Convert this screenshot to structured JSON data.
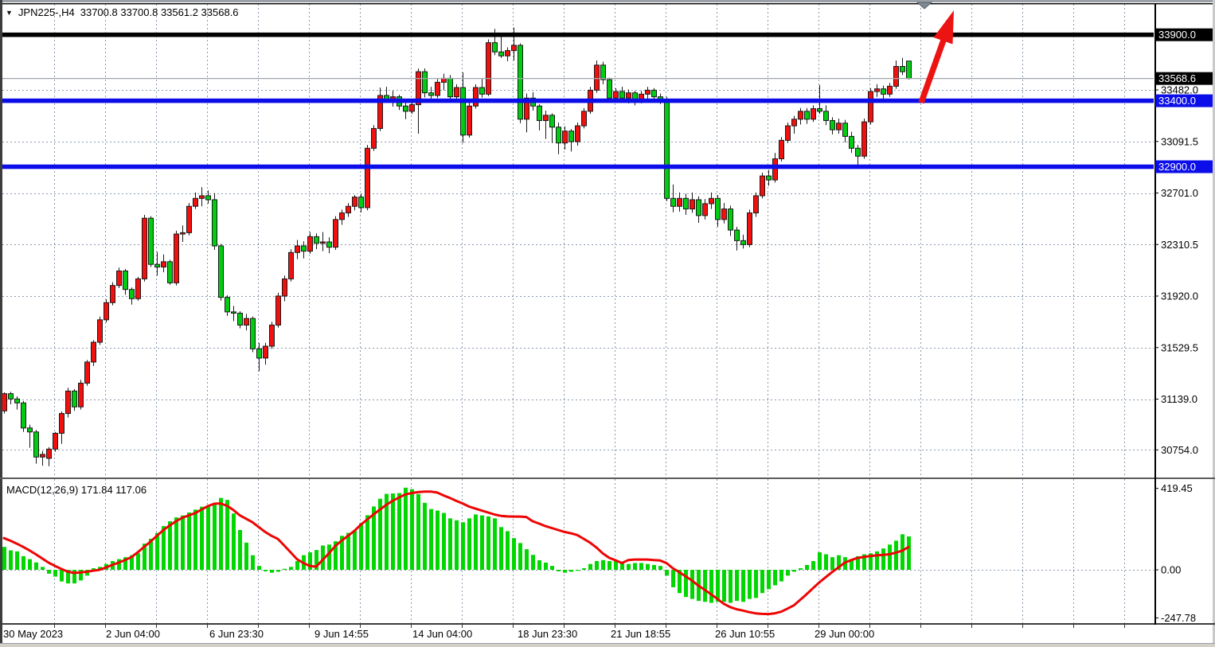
{
  "header": {
    "dropdown_icon": "▼",
    "symbol": "JPN225-,H4",
    "ohlc": "33700.8 33700.8 33561.2 33568.6"
  },
  "indicator_label": "MACD(12,26,9) 171.84 117.06",
  "colors": {
    "bull": "#f2100e",
    "bear": "#00cd12",
    "wick": "#1a1a1a",
    "grid": "#8a99ad",
    "blue_line": "#0b0ee8",
    "black_line": "#000000",
    "bid_line": "#a0a6ac",
    "signal": "#ee0404",
    "histogram": "#00d600",
    "arrow": "#ec1313",
    "marker": "#7e8891",
    "label_box_black": "#000000",
    "label_box_blue": "#0b0ee8"
  },
  "chart_data": {
    "type": "candlestick",
    "symbol": "JPN225-",
    "timeframe": "H4",
    "last_ohlc": {
      "open": 33700.8,
      "high": 33700.8,
      "low": 33561.2,
      "close": 33568.6
    },
    "price_ticks": [
      33482.0,
      33091.5,
      32701.0,
      32310.5,
      31920.0,
      31529.5,
      31139.0,
      30754.0
    ],
    "hlines": [
      {
        "price": 33900.0,
        "label": "33900.0",
        "style": "black"
      },
      {
        "price": 33400.0,
        "label": "33400.0",
        "style": "blue"
      },
      {
        "price": 32900.0,
        "label": "32900.0",
        "style": "blue"
      }
    ],
    "bid_line": {
      "price": 33568.6,
      "label": "33568.6"
    },
    "time_labels": [
      "30 May 2023",
      "2 Jun 04:00",
      "6 Jun 23:30",
      "9 Jun 14:55",
      "14 Jun 04:00",
      "18 Jun 23:30",
      "21 Jun 18:55",
      "26 Jun 10:55",
      "29 Jun 00:00"
    ],
    "candles_ohlc": [
      [
        31050,
        31190,
        31030,
        31180
      ],
      [
        31180,
        31195,
        31100,
        31140
      ],
      [
        31140,
        31160,
        31060,
        31110
      ],
      [
        31110,
        31125,
        30890,
        30920
      ],
      [
        30920,
        30945,
        30770,
        30890
      ],
      [
        30890,
        30905,
        30650,
        30700
      ],
      [
        30700,
        30745,
        30635,
        30720
      ],
      [
        30690,
        30775,
        30630,
        30760
      ],
      [
        30760,
        30890,
        30740,
        30880
      ],
      [
        30880,
        31045,
        30800,
        31030
      ],
      [
        31030,
        31225,
        31000,
        31200
      ],
      [
        31200,
        31215,
        31050,
        31080
      ],
      [
        31080,
        31285,
        31060,
        31260
      ],
      [
        31260,
        31435,
        31240,
        31420
      ],
      [
        31420,
        31585,
        31390,
        31570
      ],
      [
        31570,
        31765,
        31550,
        31740
      ],
      [
        31740,
        31895,
        31720,
        31870
      ],
      [
        31870,
        32025,
        31850,
        32000
      ],
      [
        32000,
        32135,
        31980,
        32110
      ],
      [
        32110,
        32125,
        31930,
        31970
      ],
      [
        31970,
        31985,
        31855,
        31900
      ],
      [
        31900,
        32065,
        31885,
        32050
      ],
      [
        32050,
        32535,
        32030,
        32510
      ],
      [
        32510,
        32525,
        32140,
        32160
      ],
      [
        32160,
        32255,
        32075,
        32140
      ],
      [
        32140,
        32235,
        32100,
        32180
      ],
      [
        32180,
        32195,
        32005,
        32020
      ],
      [
        32020,
        32415,
        32000,
        32390
      ],
      [
        32390,
        32455,
        32330,
        32400
      ],
      [
        32400,
        32625,
        32380,
        32600
      ],
      [
        32600,
        32705,
        32580,
        32660
      ],
      [
        32660,
        32745,
        32600,
        32680
      ],
      [
        32680,
        32720,
        32620,
        32650
      ],
      [
        32650,
        32700,
        32270,
        32300
      ],
      [
        32300,
        32315,
        31885,
        31910
      ],
      [
        31910,
        31925,
        31770,
        31800
      ],
      [
        31800,
        31845,
        31730,
        31790
      ],
      [
        31790,
        31805,
        31675,
        31700
      ],
      [
        31700,
        31785,
        31660,
        31750
      ],
      [
        31750,
        31765,
        31495,
        31520
      ],
      [
        31520,
        31565,
        31350,
        31450
      ],
      [
        31450,
        31565,
        31400,
        31540
      ],
      [
        31540,
        31725,
        31520,
        31700
      ],
      [
        31700,
        31945,
        31680,
        31920
      ],
      [
        31920,
        32075,
        31880,
        32050
      ],
      [
        32050,
        32275,
        32030,
        32250
      ],
      [
        32250,
        32345,
        32200,
        32300
      ],
      [
        32300,
        32335,
        32205,
        32260
      ],
      [
        32260,
        32405,
        32240,
        32370
      ],
      [
        32370,
        32395,
        32275,
        32320
      ],
      [
        32320,
        32405,
        32260,
        32330
      ],
      [
        32330,
        32365,
        32245,
        32290
      ],
      [
        32290,
        32525,
        32270,
        32500
      ],
      [
        32500,
        32575,
        32460,
        32550
      ],
      [
        32550,
        32625,
        32520,
        32600
      ],
      [
        32600,
        32685,
        32570,
        32670
      ],
      [
        32670,
        32695,
        32555,
        32590
      ],
      [
        32590,
        33065,
        32570,
        33040
      ],
      [
        33040,
        33215,
        33020,
        33190
      ],
      [
        33190,
        33500,
        33170,
        33440
      ],
      [
        33440,
        33505,
        33385,
        33410
      ],
      [
        33410,
        33475,
        33355,
        33430
      ],
      [
        33430,
        33445,
        33330,
        33360
      ],
      [
        33360,
        33385,
        33260,
        33320
      ],
      [
        33320,
        33395,
        33300,
        33370
      ],
      [
        33370,
        33645,
        33150,
        33620
      ],
      [
        33620,
        33645,
        33425,
        33460
      ],
      [
        33460,
        33505,
        33415,
        33440
      ],
      [
        33440,
        33565,
        33420,
        33540
      ],
      [
        33540,
        33605,
        33480,
        33570
      ],
      [
        33570,
        33595,
        33395,
        33430
      ],
      [
        33430,
        33525,
        33410,
        33500
      ],
      [
        33500,
        33615,
        33080,
        33140
      ],
      [
        33140,
        33385,
        33120,
        33360
      ],
      [
        33360,
        33525,
        33340,
        33500
      ],
      [
        33500,
        33565,
        33425,
        33450
      ],
      [
        33450,
        33865,
        33435,
        33840
      ],
      [
        33840,
        33945,
        33745,
        33770
      ],
      [
        33770,
        33895,
        33725,
        33740
      ],
      [
        33740,
        33805,
        33700,
        33780
      ],
      [
        33780,
        33955,
        33705,
        33820
      ],
      [
        33820,
        33835,
        33230,
        33260
      ],
      [
        33260,
        33455,
        33160,
        33420
      ],
      [
        33420,
        33465,
        33325,
        33360
      ],
      [
        33360,
        33375,
        33175,
        33250
      ],
      [
        33250,
        33325,
        33110,
        33290
      ],
      [
        33290,
        33305,
        33080,
        33200
      ],
      [
        33200,
        33235,
        32995,
        33080
      ],
      [
        33080,
        33205,
        33030,
        33170
      ],
      [
        33170,
        33185,
        33015,
        33090
      ],
      [
        33090,
        33235,
        33060,
        33210
      ],
      [
        33210,
        33345,
        33190,
        33320
      ],
      [
        33320,
        33505,
        33300,
        33480
      ],
      [
        33480,
        33705,
        33460,
        33670
      ],
      [
        33670,
        33695,
        33525,
        33560
      ],
      [
        33560,
        33575,
        33385,
        33420
      ],
      [
        33420,
        33495,
        33400,
        33470
      ],
      [
        33470,
        33505,
        33390,
        33420
      ],
      [
        33420,
        33485,
        33380,
        33460
      ],
      [
        33460,
        33475,
        33365,
        33400
      ],
      [
        33400,
        33475,
        33380,
        33450
      ],
      [
        33450,
        33505,
        33410,
        33480
      ],
      [
        33480,
        33495,
        33400,
        33430
      ],
      [
        33430,
        33455,
        33375,
        33410
      ],
      [
        33410,
        33430,
        32640,
        32660
      ],
      [
        32660,
        32765,
        32555,
        32600
      ],
      [
        32600,
        32705,
        32560,
        32660
      ],
      [
        32660,
        32695,
        32535,
        32580
      ],
      [
        32580,
        32705,
        32550,
        32650
      ],
      [
        32650,
        32675,
        32475,
        32530
      ],
      [
        32530,
        32655,
        32500,
        32620
      ],
      [
        32620,
        32705,
        32580,
        32660
      ],
      [
        32660,
        32685,
        32445,
        32500
      ],
      [
        32500,
        32625,
        32470,
        32580
      ],
      [
        32580,
        32605,
        32375,
        32420
      ],
      [
        32420,
        32445,
        32265,
        32340
      ],
      [
        32340,
        32385,
        32280,
        32310
      ],
      [
        32310,
        32575,
        32290,
        32550
      ],
      [
        32550,
        32705,
        32520,
        32680
      ],
      [
        32680,
        32855,
        32660,
        32830
      ],
      [
        32830,
        32875,
        32755,
        32800
      ],
      [
        32800,
        33005,
        32780,
        32960
      ],
      [
        32960,
        33125,
        32940,
        33100
      ],
      [
        33100,
        33235,
        33080,
        33210
      ],
      [
        33210,
        33285,
        33150,
        33260
      ],
      [
        33260,
        33345,
        33220,
        33320
      ],
      [
        33320,
        33345,
        33225,
        33260
      ],
      [
        33260,
        33365,
        33240,
        33340
      ],
      [
        33340,
        33520,
        33300,
        33320
      ],
      [
        33320,
        33365,
        33215,
        33250
      ],
      [
        33250,
        33275,
        33145,
        33180
      ],
      [
        33180,
        33265,
        33150,
        33230
      ],
      [
        33230,
        33255,
        33085,
        33130
      ],
      [
        33130,
        33165,
        33005,
        33040
      ],
      [
        33040,
        33065,
        32890,
        32980
      ],
      [
        32980,
        33265,
        32960,
        33240
      ],
      [
        33240,
        33495,
        33220,
        33470
      ],
      [
        33470,
        33525,
        33430,
        33490
      ],
      [
        33490,
        33515,
        33405,
        33450
      ],
      [
        33450,
        33535,
        33430,
        33510
      ],
      [
        33510,
        33705,
        33490,
        33660
      ],
      [
        33660,
        33725,
        33595,
        33620
      ],
      [
        33700.8,
        33700.8,
        33561.2,
        33568.6
      ]
    ],
    "macd": {
      "name": "MACD(12,26,9)",
      "macd_value": 171.84,
      "signal_value": 117.06,
      "axis_ticks": [
        419.45,
        0.0,
        -247.78
      ],
      "histogram": [
        118,
        100,
        95,
        70,
        55,
        38,
        15,
        -20,
        -35,
        -60,
        -70,
        -70,
        -55,
        -30,
        8,
        15,
        30,
        45,
        55,
        65,
        75,
        85,
        135,
        160,
        190,
        225,
        250,
        270,
        280,
        295,
        310,
        325,
        330,
        335,
        370,
        360,
        290,
        205,
        140,
        75,
        20,
        -8,
        -15,
        -10,
        5,
        15,
        45,
        75,
        90,
        102,
        125,
        130,
        147,
        175,
        190,
        204,
        240,
        281,
        326,
        366,
        391,
        393,
        395,
        423,
        415,
        390,
        345,
        313,
        305,
        293,
        265,
        255,
        245,
        265,
        285,
        280,
        275,
        265,
        220,
        199,
        163,
        138,
        106,
        77,
        49,
        37,
        20,
        -8,
        -15,
        -10,
        -5,
        8,
        30,
        45,
        50,
        45,
        45,
        40,
        30,
        35,
        35,
        30,
        25,
        20,
        -30,
        -90,
        -120,
        -140,
        -150,
        -160,
        -165,
        -170,
        -165,
        -165,
        -170,
        -160,
        -165,
        -150,
        -145,
        -120,
        -100,
        -80,
        -60,
        -30,
        -10,
        8,
        25,
        45,
        90,
        80,
        65,
        75,
        65,
        55,
        70,
        80,
        85,
        95,
        110,
        130,
        150,
        183,
        171.84
      ],
      "signal": [
        163,
        150,
        135,
        118,
        100,
        80,
        58,
        37,
        20,
        5,
        -10,
        -16,
        -14,
        -10,
        -5,
        0,
        12,
        25,
        37,
        50,
        65,
        90,
        118,
        145,
        175,
        204,
        228,
        250,
        268,
        280,
        292,
        310,
        328,
        340,
        342,
        330,
        308,
        281,
        263,
        245,
        220,
        195,
        175,
        159,
        125,
        90,
        55,
        35,
        20,
        16,
        50,
        85,
        122,
        150,
        175,
        200,
        232,
        258,
        285,
        310,
        334,
        355,
        372,
        388,
        395,
        400,
        403,
        403,
        398,
        383,
        370,
        355,
        342,
        326,
        315,
        305,
        295,
        285,
        278,
        275,
        274,
        274,
        272,
        250,
        238,
        225,
        215,
        205,
        195,
        188,
        179,
        160,
        140,
        115,
        85,
        62,
        49,
        35,
        50,
        53,
        53,
        53,
        50,
        48,
        35,
        8,
        -12,
        -33,
        -55,
        -81,
        -103,
        -126,
        -150,
        -175,
        -192,
        -203,
        -210,
        -218,
        -224,
        -227,
        -228,
        -224,
        -216,
        -200,
        -183,
        -155,
        -126,
        -95,
        -65,
        -38,
        -12,
        12,
        37,
        50,
        61,
        66,
        71,
        74,
        77,
        80,
        88,
        98,
        117.06
      ]
    },
    "annotations": {
      "arrow": "red-up-trend-arrow",
      "marker": "gray-down-triangle"
    }
  }
}
